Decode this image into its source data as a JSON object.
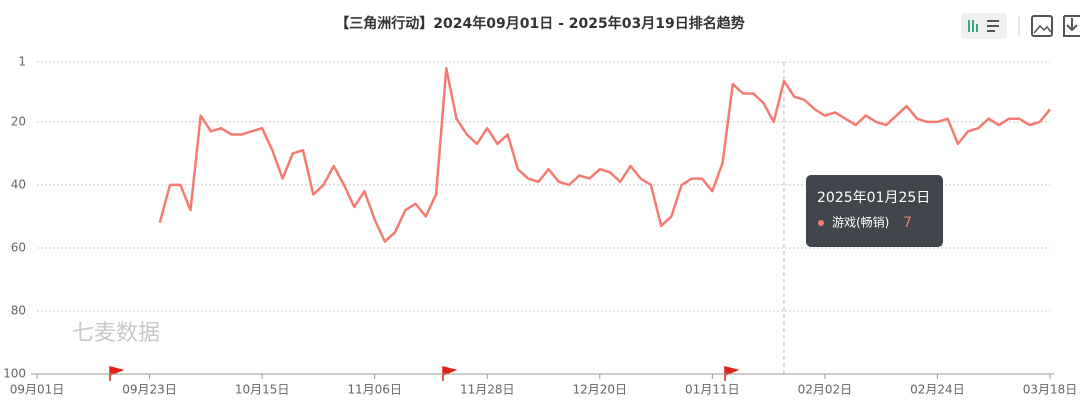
{
  "chart_data": {
    "type": "line",
    "title": "【三角洲行动】2024年09月01日 - 2025年03月19日排名趋势",
    "watermark": "七麦数据",
    "categories": [
      "09月01日",
      null,
      null,
      null,
      null,
      null,
      null,
      null,
      null,
      null,
      null,
      "09月23日",
      null,
      null,
      null,
      null,
      null,
      null,
      null,
      null,
      null,
      null,
      "10月15日",
      null,
      null,
      null,
      null,
      null,
      null,
      null,
      null,
      null,
      null,
      "11月06日",
      null,
      null,
      null,
      null,
      null,
      null,
      null,
      null,
      null,
      null,
      "11月28日",
      null,
      null,
      null,
      null,
      null,
      null,
      null,
      null,
      null,
      null,
      "12月20日",
      null,
      null,
      null,
      null,
      null,
      null,
      null,
      null,
      null,
      null,
      "01月11日",
      null,
      null,
      null,
      null,
      null,
      null,
      null,
      null,
      null,
      null,
      "02月02日",
      null,
      null,
      null,
      null,
      null,
      null,
      null,
      null,
      null,
      null,
      "02月24日",
      null,
      null,
      null,
      null,
      null,
      null,
      null,
      null,
      null,
      null,
      "03月18日"
    ],
    "series": [
      {
        "name": "游戏(畅销)",
        "color": "#f47b72",
        "values": [
          null,
          null,
          null,
          null,
          null,
          null,
          null,
          null,
          null,
          null,
          null,
          null,
          52,
          40,
          40,
          48,
          18,
          23,
          22,
          24,
          24,
          23,
          22,
          29,
          38,
          30,
          29,
          43,
          40,
          34,
          40,
          47,
          42,
          51,
          58,
          55,
          48,
          46,
          50,
          43,
          3,
          19,
          24,
          27,
          22,
          27,
          24,
          35,
          38,
          39,
          35,
          39,
          40,
          37,
          38,
          35,
          36,
          39,
          34,
          38,
          40,
          53,
          50,
          40,
          38,
          38,
          42,
          33,
          8,
          11,
          11,
          14,
          20,
          7,
          12,
          13,
          16,
          18,
          17,
          19,
          21,
          18,
          20,
          21,
          18,
          15,
          19,
          20,
          20,
          19,
          27,
          23,
          22,
          19,
          21,
          19,
          19,
          21,
          20,
          16
        ]
      }
    ],
    "ylim": [
      1,
      100
    ],
    "y_inverted": true,
    "yticks": [
      1,
      20,
      40,
      60,
      80,
      100
    ],
    "grid": true,
    "tooltip": {
      "date": "2025年01月25日",
      "index": 73
    }
  }
}
